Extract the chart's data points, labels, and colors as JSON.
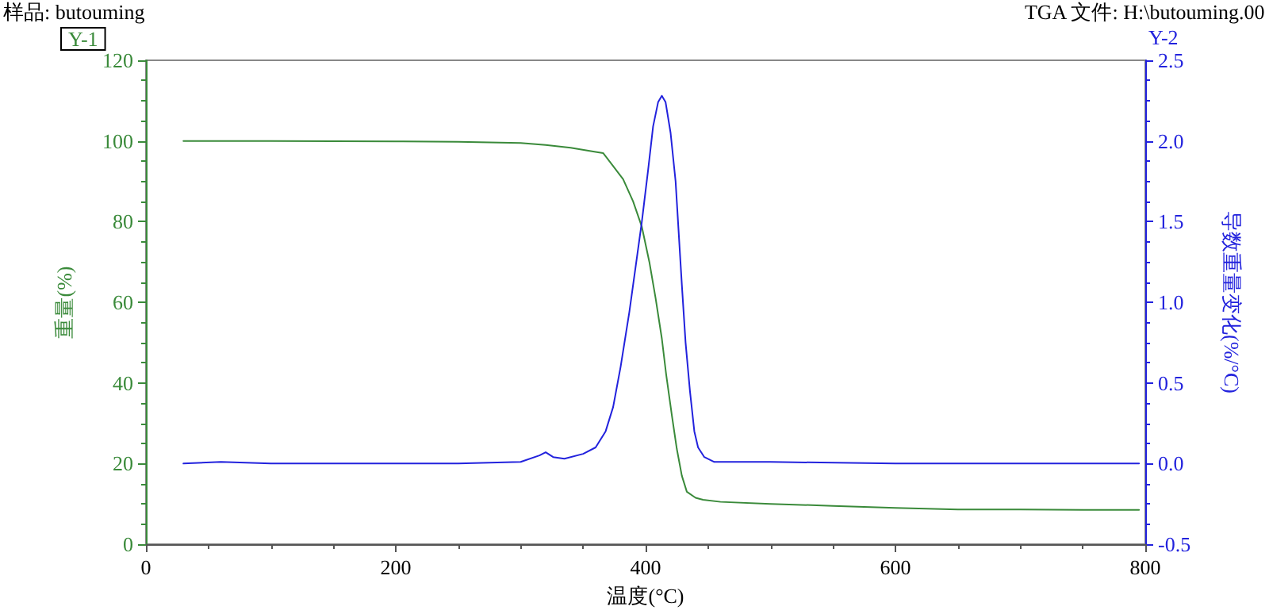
{
  "chart_data": {
    "type": "line",
    "xlabel": "温度(°C)",
    "ylabel": "重量(%)",
    "y2label": "导数重量变化(%/°C)",
    "annotations": [
      "样品: butouming",
      "TGA 文件: H:\\butouming.00",
      "Y-1",
      "Y-2"
    ],
    "xlim": [
      0,
      800
    ],
    "xticks": [
      0,
      200,
      400,
      600,
      800
    ],
    "ylim": [
      0,
      120
    ],
    "yticks": [
      0,
      20,
      40,
      60,
      80,
      100,
      120
    ],
    "y2lim": [
      -0.5,
      2.5
    ],
    "y2ticks": [
      -0.5,
      {
        "value": 0,
        "label": "0.0"
      },
      0.5,
      {
        "value": 1,
        "label": "1.0"
      },
      1.5,
      {
        "value": 2,
        "label": "2.0"
      },
      2.5
    ],
    "grid": false,
    "marker": "none",
    "line_style": "solid",
    "series": [
      {
        "color": "#3a8a3a",
        "x": [
          30,
          100,
          200,
          250,
          300,
          320,
          340,
          360,
          366,
          382,
          390,
          397,
          403,
          408,
          413,
          416.5,
          421,
          425,
          429,
          433,
          440,
          446,
          460,
          500,
          550,
          600,
          650,
          700,
          750,
          795
        ],
        "values": [
          100,
          100,
          99.9,
          99.8,
          99.5,
          99,
          98.3,
          97.3,
          97,
          90.5,
          85,
          78.7,
          70,
          61,
          51,
          42,
          32,
          23.6,
          17,
          13,
          11.5,
          11,
          10.5,
          10,
          9.5,
          9,
          8.6,
          8.6,
          8.5,
          8.5
        ]
      },
      {
        "color": "#2222dd",
        "axis": "y2",
        "x": [
          30,
          60,
          100,
          200,
          250,
          300,
          315,
          320,
          326,
          335,
          350,
          360,
          368,
          374,
          380,
          387,
          392,
          397,
          402,
          406,
          410,
          413,
          416,
          420,
          424,
          429,
          432,
          435.5,
          439,
          442,
          447,
          455,
          470,
          500,
          600,
          700,
          795
        ],
        "values": [
          0,
          0.01,
          0,
          0,
          0,
          0.01,
          0.05,
          0.07,
          0.04,
          0.03,
          0.06,
          0.1,
          0.2,
          0.35,
          0.6,
          0.94,
          1.22,
          1.5,
          1.82,
          2.09,
          2.24,
          2.28,
          2.24,
          2.05,
          1.75,
          1.11,
          0.75,
          0.45,
          0.2,
          0.1,
          0.04,
          0.01,
          0.01,
          0.01,
          0,
          0,
          0
        ]
      }
    ]
  }
}
